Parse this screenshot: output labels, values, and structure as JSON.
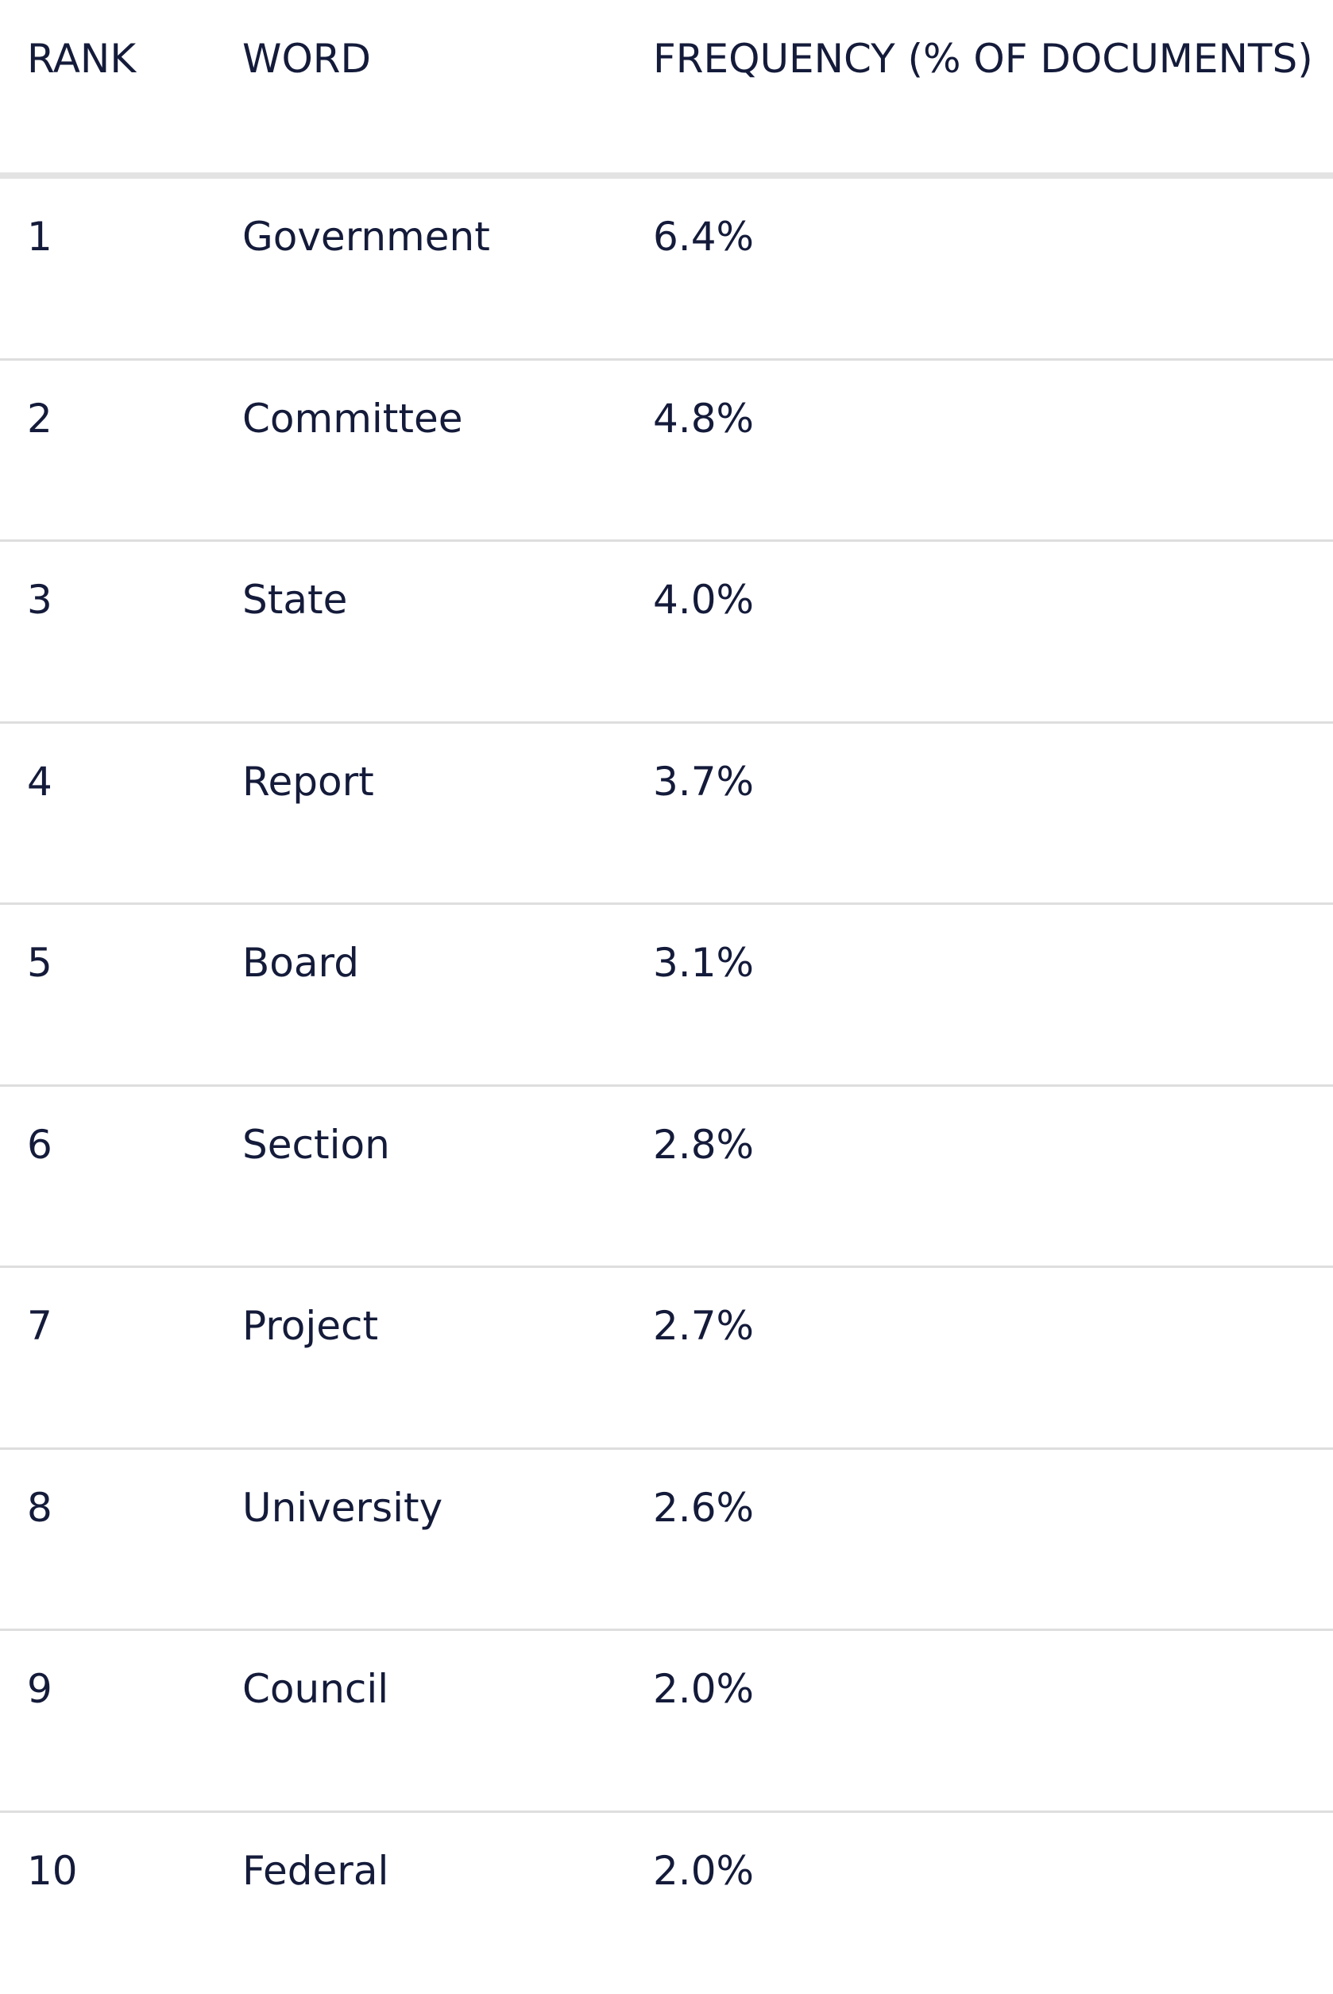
{
  "chart_data": {
    "type": "table",
    "columns": [
      "RANK",
      "WORD",
      "FREQUENCY (% OF DOCUMENTS)"
    ],
    "rows": [
      {
        "rank": "1",
        "word": "Government",
        "frequency": "6.4%"
      },
      {
        "rank": "2",
        "word": "Committee",
        "frequency": "4.8%"
      },
      {
        "rank": "3",
        "word": "State",
        "frequency": "4.0%"
      },
      {
        "rank": "4",
        "word": "Report",
        "frequency": "3.7%"
      },
      {
        "rank": "5",
        "word": "Board",
        "frequency": "3.1%"
      },
      {
        "rank": "6",
        "word": "Section",
        "frequency": "2.8%"
      },
      {
        "rank": "7",
        "word": "Project",
        "frequency": "2.7%"
      },
      {
        "rank": "8",
        "word": "University",
        "frequency": "2.6%"
      },
      {
        "rank": "9",
        "word": "Council",
        "frequency": "2.0%"
      },
      {
        "rank": "10",
        "word": "Federal",
        "frequency": "2.0%"
      }
    ]
  },
  "colors": {
    "text": "#141b3a",
    "divider": "#dedede",
    "header_divider": "#e3e3e3",
    "background": "#ffffff"
  }
}
